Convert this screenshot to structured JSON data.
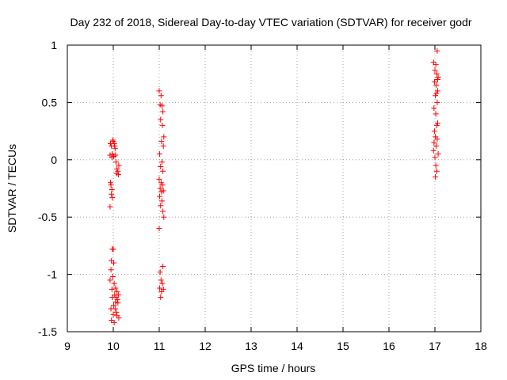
{
  "chart_data": {
    "type": "scatter",
    "title": "Day 232 of 2018, Sidereal Day-to-day VTEC variation (SDTVAR) for receiver godr",
    "xlabel": "GPS time / hours",
    "ylabel": "SDTVAR / TECUs",
    "xlim": [
      9,
      18
    ],
    "ylim": [
      -1.5,
      1
    ],
    "xticks": [
      "9",
      "10",
      "11",
      "12",
      "13",
      "14",
      "15",
      "16",
      "17",
      "18"
    ],
    "yticks": [
      "-1.5",
      "-1",
      "-0.5",
      "0",
      "0.5",
      "1"
    ],
    "grid": true,
    "marker": "+",
    "series": [
      {
        "name": "SDTVAR",
        "color": "#ff0000",
        "points": [
          [
            9.94,
            0.14
          ],
          [
            9.96,
            0.12
          ],
          [
            9.98,
            0.05
          ],
          [
            10.0,
            0.16
          ],
          [
            10.02,
            0.14
          ],
          [
            10.04,
            0.1
          ],
          [
            9.93,
            0.04
          ],
          [
            9.97,
            0.02
          ],
          [
            10.01,
            0.03
          ],
          [
            10.05,
            0.04
          ],
          [
            10.03,
            0.12
          ],
          [
            9.99,
            0.17
          ],
          [
            10.06,
            -0.02
          ],
          [
            10.08,
            -0.08
          ],
          [
            10.1,
            -0.1
          ],
          [
            10.12,
            -0.05
          ],
          [
            10.07,
            -0.12
          ],
          [
            10.11,
            -0.13
          ],
          [
            9.95,
            -0.22
          ],
          [
            9.97,
            -0.26
          ],
          [
            9.96,
            -0.3
          ],
          [
            9.98,
            -0.33
          ],
          [
            9.94,
            -0.2
          ],
          [
            9.93,
            -0.41
          ],
          [
            9.98,
            -0.78
          ],
          [
            10.0,
            -0.78
          ],
          [
            9.96,
            -0.88
          ],
          [
            10.01,
            -0.9
          ],
          [
            9.95,
            -0.96
          ],
          [
            9.99,
            -1.02
          ],
          [
            9.93,
            -1.05
          ],
          [
            10.02,
            -1.08
          ],
          [
            10.05,
            -1.12
          ],
          [
            10.08,
            -1.15
          ],
          [
            9.97,
            -1.13
          ],
          [
            10.03,
            -1.18
          ],
          [
            10.06,
            -1.2
          ],
          [
            10.09,
            -1.22
          ],
          [
            10.1,
            -1.25
          ],
          [
            10.01,
            -1.27
          ],
          [
            10.04,
            -1.3
          ],
          [
            10.07,
            -1.33
          ],
          [
            9.95,
            -1.3
          ],
          [
            10.0,
            -1.35
          ],
          [
            10.12,
            -1.38
          ],
          [
            9.96,
            -1.4
          ],
          [
            10.02,
            -1.42
          ],
          [
            10.08,
            -1.36
          ],
          [
            10.11,
            -1.18
          ],
          [
            10.05,
            -1.24
          ],
          [
            9.98,
            -1.2
          ],
          [
            11.0,
            0.6
          ],
          [
            11.04,
            0.56
          ],
          [
            11.02,
            0.48
          ],
          [
            11.06,
            0.47
          ],
          [
            11.08,
            0.42
          ],
          [
            11.03,
            0.35
          ],
          [
            11.07,
            0.3
          ],
          [
            11.1,
            0.2
          ],
          [
            11.05,
            0.16
          ],
          [
            11.09,
            0.12
          ],
          [
            11.01,
            0.05
          ],
          [
            11.06,
            -0.02
          ],
          [
            11.03,
            -0.06
          ],
          [
            11.08,
            -0.1
          ],
          [
            11.0,
            -0.17
          ],
          [
            11.04,
            -0.2
          ],
          [
            11.07,
            -0.22
          ],
          [
            11.02,
            -0.25
          ],
          [
            11.05,
            -0.28
          ],
          [
            11.09,
            -0.27
          ],
          [
            11.01,
            -0.32
          ],
          [
            11.06,
            -0.36
          ],
          [
            11.03,
            -0.4
          ],
          [
            11.08,
            -0.45
          ],
          [
            11.1,
            -0.5
          ],
          [
            11.0,
            -0.6
          ],
          [
            11.02,
            -0.98
          ],
          [
            11.04,
            -1.05
          ],
          [
            11.07,
            -1.08
          ],
          [
            11.01,
            -1.12
          ],
          [
            11.05,
            -1.15
          ],
          [
            11.09,
            -1.13
          ],
          [
            11.03,
            -1.2
          ],
          [
            11.08,
            -0.93
          ],
          [
            16.97,
            0.85
          ],
          [
            17.02,
            0.83
          ],
          [
            17.05,
            0.95
          ],
          [
            17.0,
            0.78
          ],
          [
            17.04,
            0.75
          ],
          [
            17.07,
            0.72
          ],
          [
            16.99,
            0.68
          ],
          [
            17.03,
            0.65
          ],
          [
            17.06,
            0.6
          ],
          [
            17.01,
            0.56
          ],
          [
            17.05,
            0.5
          ],
          [
            16.98,
            0.45
          ],
          [
            17.02,
            0.4
          ],
          [
            17.04,
            0.3
          ],
          [
            17.06,
            0.32
          ],
          [
            16.99,
            0.25
          ],
          [
            17.01,
            0.2
          ],
          [
            17.05,
            0.18
          ],
          [
            17.03,
            0.12
          ],
          [
            16.97,
            0.08
          ],
          [
            17.07,
            0.05
          ],
          [
            17.0,
            0.02
          ],
          [
            17.02,
            -0.05
          ],
          [
            17.04,
            -0.1
          ],
          [
            17.01,
            -0.15
          ],
          [
            16.98,
            0.15
          ],
          [
            17.06,
            0.7
          ],
          [
            17.03,
            0.58
          ]
        ]
      }
    ]
  }
}
